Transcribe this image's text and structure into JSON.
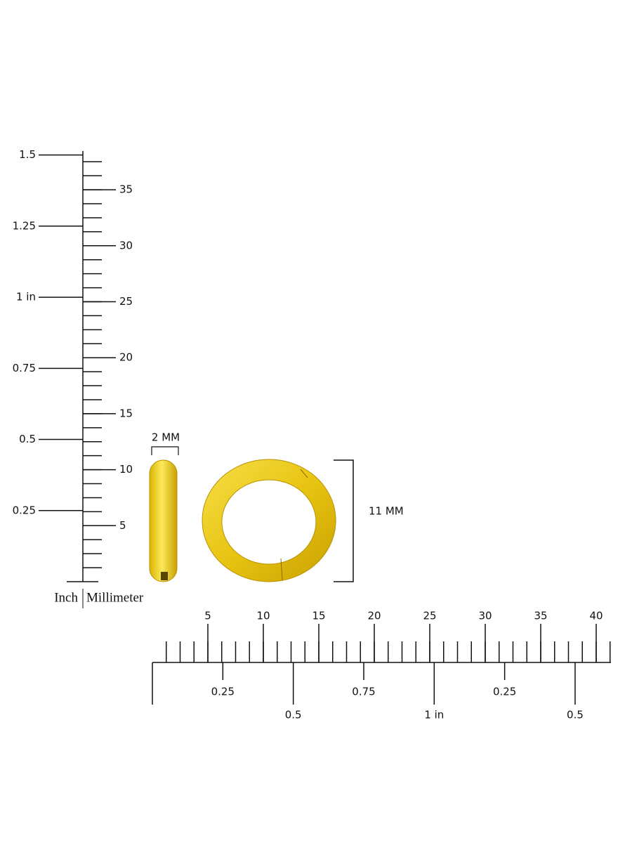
{
  "vertical_ruler": {
    "inch_labels": [
      "0.25",
      "0.5",
      "0.75",
      "1 in",
      "1.25",
      "1.5"
    ],
    "mm_labels": [
      "5",
      "10",
      "15",
      "20",
      "25",
      "30",
      "35"
    ]
  },
  "horizontal_ruler": {
    "mm_labels": [
      "5",
      "10",
      "15",
      "20",
      "25",
      "30",
      "35",
      "40"
    ],
    "inch_labels": [
      "0.25",
      "0.5",
      "0.75",
      "1 in",
      "0.25",
      "0.5"
    ]
  },
  "dimensions": {
    "width": "2 MM",
    "height": "11 MM"
  },
  "unit_legend": {
    "inch": "Inch",
    "millimeter": "Millimeter"
  }
}
